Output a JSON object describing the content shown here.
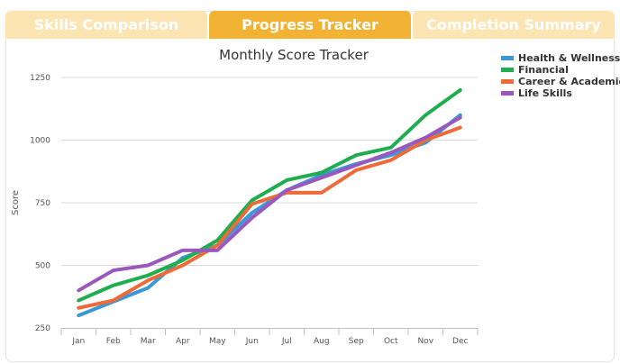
{
  "tabs": [
    {
      "label": "Skills Comparison",
      "active": false
    },
    {
      "label": "Progress Tracker",
      "active": true
    },
    {
      "label": "Completion Summary",
      "active": false
    }
  ],
  "colors": {
    "tab_active": "#f2b233",
    "tab_inactive": "#fce5b3"
  },
  "chart_data": {
    "type": "line",
    "title": "Monthly Score Tracker",
    "xlabel": "",
    "ylabel": "Score",
    "categories": [
      "Jan",
      "Feb",
      "Mar",
      "Apr",
      "May",
      "Jun",
      "Jul",
      "Aug",
      "Sep",
      "Oct",
      "Nov",
      "Dec"
    ],
    "ylim": [
      250,
      1250
    ],
    "yticks": [
      250,
      500,
      750,
      1000,
      1250
    ],
    "grid": true,
    "legend_position": "top-right",
    "series": [
      {
        "name": "Health & Wellness",
        "color": "#3a98d8",
        "values": [
          300,
          355,
          410,
          530,
          580,
          710,
          800,
          860,
          905,
          940,
          990,
          1100
        ]
      },
      {
        "name": "Financial",
        "color": "#1fae4f",
        "values": [
          360,
          420,
          460,
          520,
          600,
          760,
          840,
          870,
          940,
          970,
          1100,
          1200
        ]
      },
      {
        "name": "Career & Academic",
        "color": "#ee6a36",
        "values": [
          330,
          360,
          440,
          500,
          580,
          745,
          790,
          790,
          880,
          920,
          1000,
          1050
        ]
      },
      {
        "name": "Life Skills",
        "color": "#9a58bd",
        "values": [
          400,
          480,
          500,
          560,
          560,
          690,
          800,
          850,
          900,
          950,
          1010,
          1090
        ]
      }
    ]
  }
}
